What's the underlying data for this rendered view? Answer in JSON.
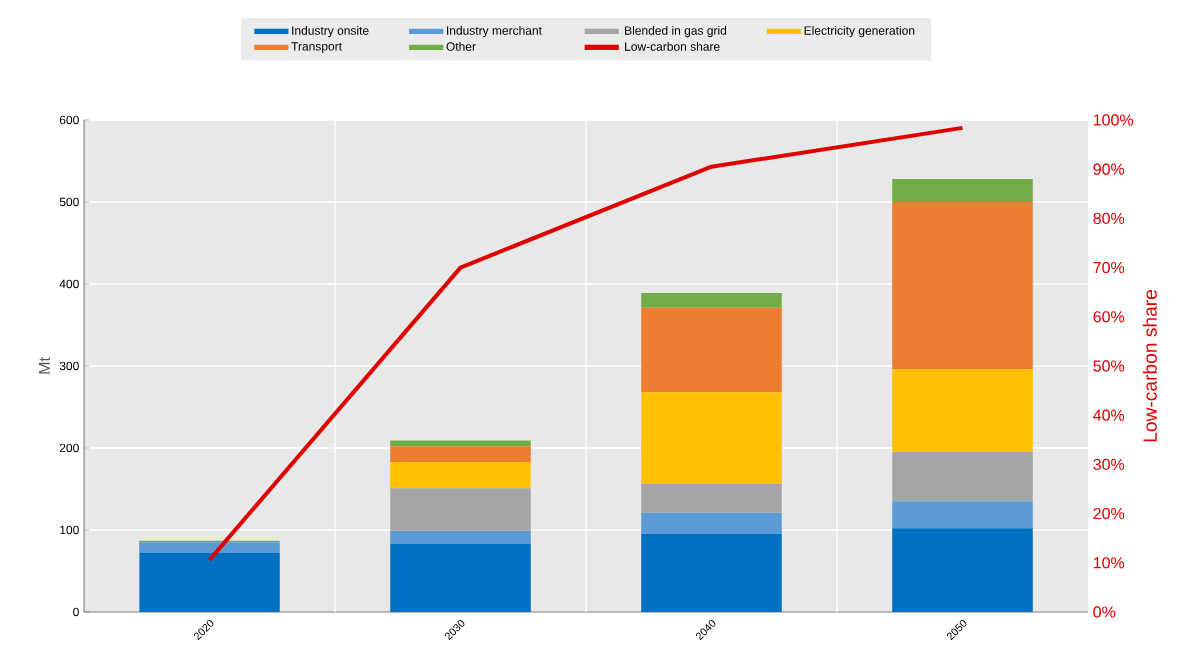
{
  "chart_data": {
    "type": "bar",
    "stacked": true,
    "categories": [
      "2020",
      "2030",
      "2040",
      "2050"
    ],
    "ylabel": "Mt",
    "y2label": "Low-carbon share",
    "ylim": [
      0,
      600
    ],
    "yticks": [
      0,
      100,
      200,
      300,
      400,
      500,
      600
    ],
    "y2lim": [
      0,
      100
    ],
    "y2ticks": [
      {
        "value": 0,
        "label": "0%"
      },
      {
        "value": 10,
        "label": "10%"
      },
      {
        "value": 20,
        "label": "20%"
      },
      {
        "value": 30,
        "label": "30%"
      },
      {
        "value": 40,
        "label": "40%"
      },
      {
        "value": 50,
        "label": "50%"
      },
      {
        "value": 60,
        "label": "60%"
      },
      {
        "value": 70,
        "label": "70%"
      },
      {
        "value": 80,
        "label": "80%"
      },
      {
        "value": 90,
        "label": "90%"
      },
      {
        "value": 100,
        "label": "100%"
      }
    ],
    "grid": true,
    "legend": "top",
    "series": [
      {
        "name": "Industry onsite",
        "color": "#0070c0",
        "values": [
          72,
          83,
          95,
          102
        ]
      },
      {
        "name": "Industry merchant",
        "color": "#5b9bd5",
        "values": [
          13,
          16,
          26,
          33
        ]
      },
      {
        "name": "Blended in gas grid",
        "color": "#a5a5a5",
        "values": [
          0,
          52,
          35,
          60
        ]
      },
      {
        "name": "Electricity generation",
        "color": "#ffc000",
        "values": [
          0,
          32,
          112,
          101
        ]
      },
      {
        "name": "Transport",
        "color": "#ed7d31",
        "values": [
          0,
          19,
          103,
          204
        ]
      },
      {
        "name": "Other",
        "color": "#70ad47",
        "values": [
          2,
          7,
          18,
          28
        ]
      },
      {
        "name": "Low-carbon share",
        "color": "#e00000",
        "type": "line",
        "axis": "y2",
        "values": [
          10.6,
          70,
          90.5,
          98.4
        ]
      }
    ]
  }
}
